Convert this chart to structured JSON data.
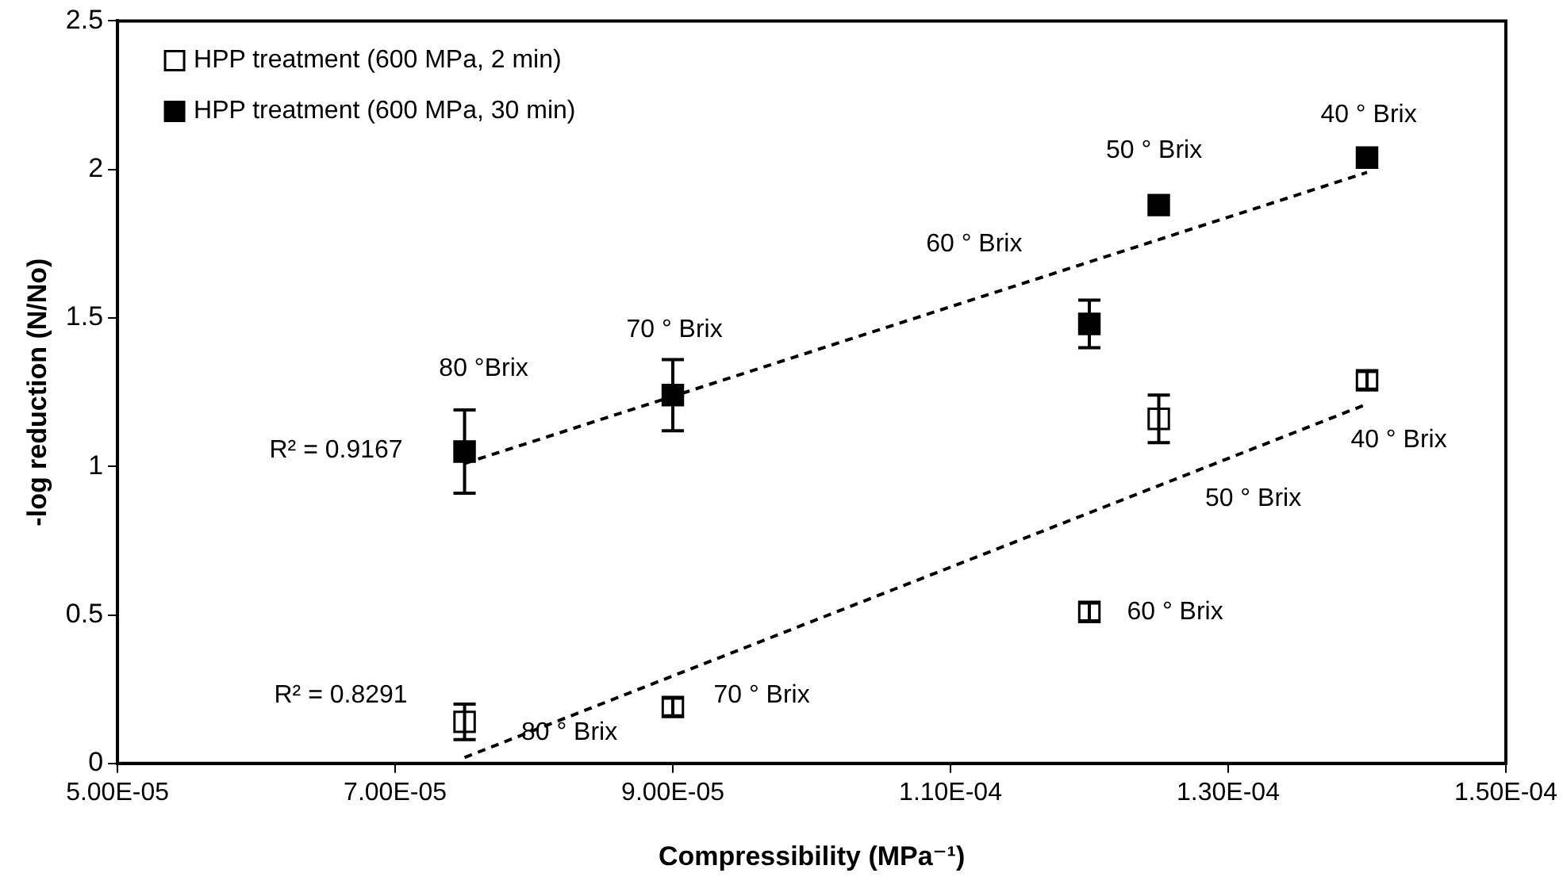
{
  "chart_data": {
    "type": "scatter",
    "xlabel": "Compressibility (MPa⁻¹)",
    "ylabel": "-log reduction (N/No)",
    "xlim": [
      5e-05,
      0.00015
    ],
    "xticks": [
      {
        "value": 5e-05,
        "label": "5.00E-05"
      },
      {
        "value": 7e-05,
        "label": "7.00E-05"
      },
      {
        "value": 9e-05,
        "label": "9.00E-05"
      },
      {
        "value": 0.00011,
        "label": "1.10E-04"
      },
      {
        "value": 0.00013,
        "label": "1.30E-04"
      },
      {
        "value": 0.00015,
        "label": "1.50E-04"
      }
    ],
    "ylim": [
      0,
      2.5
    ],
    "yticks": [
      0,
      0.5,
      1,
      1.5,
      2,
      2.5
    ],
    "grid": false,
    "legend": "top left",
    "marker": "square",
    "series": [
      {
        "name": "HPP treatment (600 MPa, 2 min)",
        "color": "#ffffff",
        "x": [
          7.5e-05,
          9e-05,
          0.00012,
          0.000125,
          0.00014
        ],
        "values": [
          0.14,
          0.19,
          0.51,
          1.16,
          1.29
        ],
        "errors": [
          0.06,
          0.03,
          0.03,
          0.08,
          0.03
        ]
      },
      {
        "name": "HPP treatment (600 MPa, 30 min)",
        "color": "#000000",
        "x": [
          7.5e-05,
          9e-05,
          0.00012,
          0.000125,
          0.00014
        ],
        "values": [
          1.05,
          1.24,
          1.48,
          1.88,
          2.04
        ],
        "errors": [
          0.14,
          0.12,
          0.08,
          null,
          null
        ]
      },
      {
        "type": "line",
        "color": "#000000",
        "line_style": "dashed",
        "marker": "none",
        "x": [
          7.5e-05,
          0.00014
        ],
        "values": [
          0.02,
          1.21
        ]
      },
      {
        "type": "line",
        "color": "#000000",
        "line_style": "dashed",
        "marker": "none",
        "x": [
          7.5e-05,
          0.00014
        ],
        "values": [
          1.01,
          1.99
        ]
      }
    ],
    "annotations": [
      {
        "text": "80 °Brix",
        "x": 7.5e-05,
        "y": 1.05
      },
      {
        "text": "70 ° Brix",
        "x": 9e-05,
        "y": 1.24
      },
      "60 ° Brix",
      {
        "text": "50 ° Brix",
        "x": 0.000125,
        "y": 1.88
      },
      {
        "text": "40 ° Brix",
        "x": 0.00014,
        "y": 2.04
      },
      {
        "text": "40 ° Brix",
        "x": 0.00014,
        "y": 1.29
      },
      "50 ° Brix",
      {
        "text": "60 ° Brix",
        "x": 0.00012,
        "y": 0.51
      },
      {
        "text": "70 ° Brix",
        "x": 9e-05,
        "y": 0.19
      },
      {
        "text": "80 ° Brix",
        "x": 7.5e-05,
        "y": 0.14
      },
      {
        "text": "R² = 0.9167",
        "x": 7.5e-05,
        "y": 1.01
      },
      {
        "text": "R² = 0.8291",
        "x": 7.5e-05,
        "y": 0.02
      }
    ]
  }
}
